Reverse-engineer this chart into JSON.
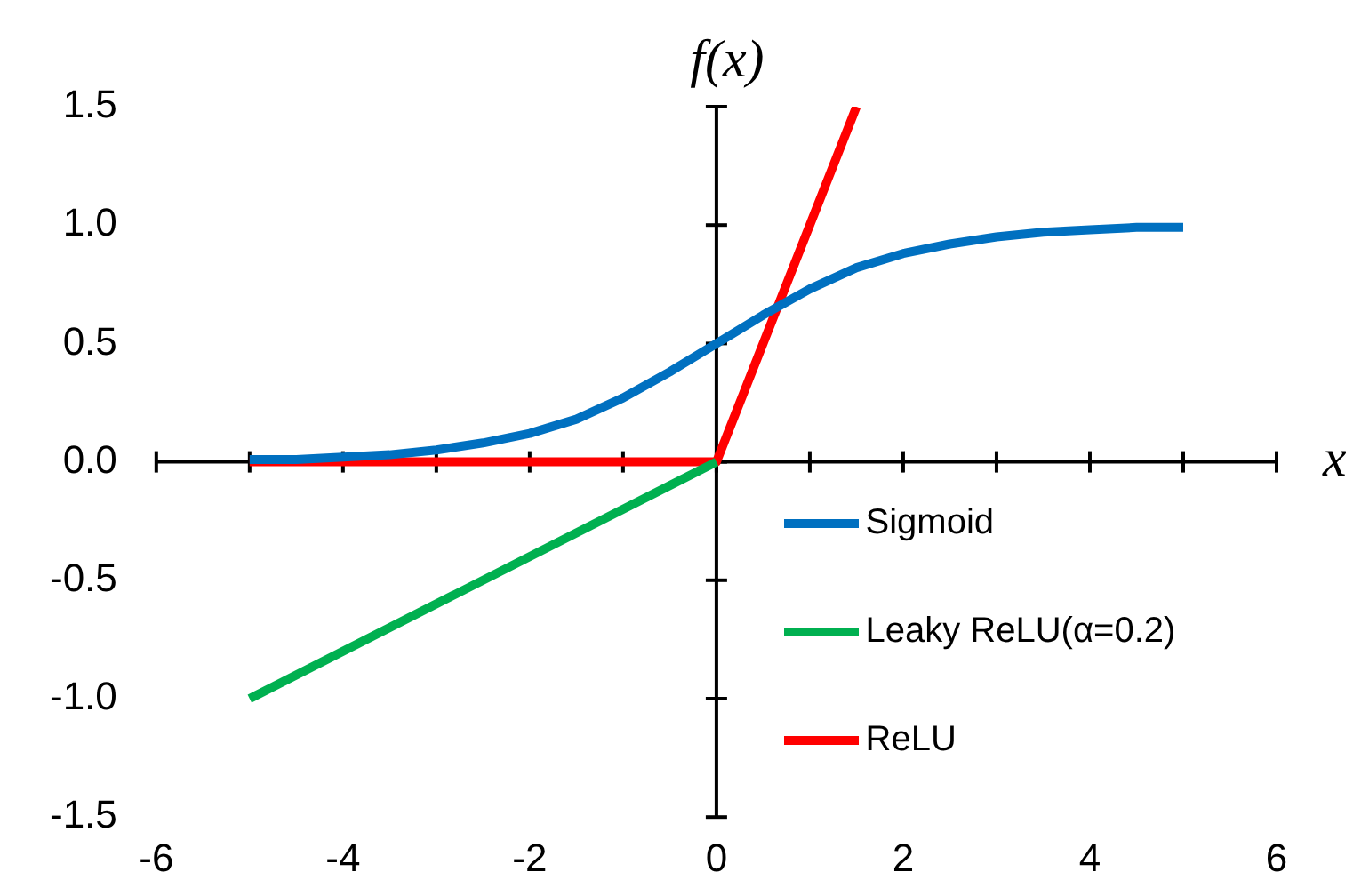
{
  "chart_data": {
    "type": "line",
    "xlabel": "x",
    "ylabel": "f(x)",
    "xlim": [
      -6,
      6
    ],
    "ylim": [
      -1.5,
      1.5
    ],
    "xticks": [
      -6,
      {
        "value": -5,
        "label": null
      },
      -4,
      {
        "value": -3,
        "label": null
      },
      -2,
      {
        "value": -1,
        "label": null
      },
      0,
      {
        "value": 1,
        "label": null
      },
      2,
      {
        "value": 3,
        "label": null
      },
      4,
      {
        "value": 5,
        "label": null
      },
      6
    ],
    "yticks": [
      {
        "value": -1.5,
        "label": "-1.5"
      },
      {
        "value": -1,
        "label": "-1.0"
      },
      {
        "value": -0.5,
        "label": "-0.5"
      },
      {
        "value": 0,
        "label": "0.0"
      },
      {
        "value": 0.5,
        "label": "0.5"
      },
      {
        "value": 1,
        "label": "1.0"
      },
      {
        "value": 1.5,
        "label": "1.5"
      }
    ],
    "legend": "bottom right",
    "line_style": "solid",
    "series": [
      {
        "name": "Sigmoid",
        "color": "#0070c0",
        "x": [
          -5,
          -4.5,
          -4,
          -3.5,
          -3,
          -2.5,
          -2,
          -1.5,
          -1,
          -0.5,
          0,
          0.5,
          1,
          1.5,
          2,
          2.5,
          3,
          3.5,
          4,
          4.5,
          5
        ],
        "values": [
          0.01,
          0.01,
          0.02,
          0.03,
          0.05,
          0.08,
          0.12,
          0.18,
          0.27,
          0.38,
          0.5,
          0.62,
          0.73,
          0.82,
          0.88,
          0.92,
          0.95,
          0.97,
          0.98,
          0.99,
          0.99
        ]
      },
      {
        "name": "Leaky ReLU(α=0.2)",
        "color": "#00b050",
        "x": [
          -5,
          0
        ],
        "values": [
          -1,
          0
        ]
      },
      {
        "name": "ReLU",
        "color": "#ff0000",
        "x": [
          -5,
          0,
          1.5
        ],
        "values": [
          0,
          0,
          1.5
        ]
      }
    ]
  }
}
